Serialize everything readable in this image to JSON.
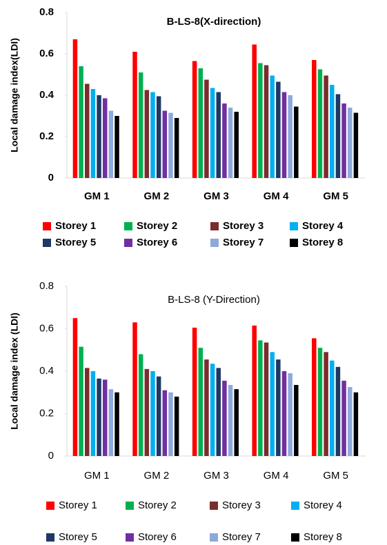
{
  "chart_data": [
    {
      "type": "bar",
      "title": "B-LS-8(X-direction)",
      "y_label": "Local damage index(LDI)",
      "categories": [
        "GM 1",
        "GM 2",
        "GM 3",
        "GM 4",
        "GM 5"
      ],
      "ylim": [
        0,
        0.8
      ],
      "yticks": [
        0,
        0.2,
        0.4,
        0.6,
        0.8
      ],
      "series": [
        {
          "name": "Storey 1",
          "color": "#ff0000",
          "values": [
            0.67,
            0.61,
            0.565,
            0.645,
            0.57
          ]
        },
        {
          "name": "Storey 2",
          "color": "#00b050",
          "values": [
            0.54,
            0.51,
            0.53,
            0.555,
            0.525
          ]
        },
        {
          "name": "Storey 3",
          "color": "#7b2c2c",
          "values": [
            0.455,
            0.425,
            0.475,
            0.545,
            0.495
          ]
        },
        {
          "name": "Storey 4",
          "color": "#00b0f0",
          "values": [
            0.43,
            0.415,
            0.435,
            0.495,
            0.45
          ]
        },
        {
          "name": "Storey 5",
          "color": "#1f3864",
          "values": [
            0.4,
            0.395,
            0.415,
            0.465,
            0.405
          ]
        },
        {
          "name": "Storey 6",
          "color": "#7030a0",
          "values": [
            0.385,
            0.325,
            0.36,
            0.415,
            0.36
          ]
        },
        {
          "name": "Storey 7",
          "color": "#8ea9db",
          "values": [
            0.325,
            0.315,
            0.34,
            0.4,
            0.34
          ]
        },
        {
          "name": "Storey 8",
          "color": "#000000",
          "values": [
            0.3,
            0.29,
            0.32,
            0.345,
            0.315
          ]
        }
      ]
    },
    {
      "type": "bar",
      "title": "B-LS-8 (Y-Direction)",
      "y_label": "Local damage index (LDI)",
      "categories": [
        "GM 1",
        "GM 2",
        "GM 3",
        "GM 4",
        "GM 5"
      ],
      "ylim": [
        0,
        0.8
      ],
      "yticks": [
        0,
        0.2,
        0.4,
        0.6,
        0.8
      ],
      "series": [
        {
          "name": "Storey 1",
          "color": "#ff0000",
          "values": [
            0.65,
            0.63,
            0.605,
            0.615,
            0.555
          ]
        },
        {
          "name": "Storey 2",
          "color": "#00b050",
          "values": [
            0.515,
            0.48,
            0.51,
            0.545,
            0.51
          ]
        },
        {
          "name": "Storey 3",
          "color": "#7b2c2c",
          "values": [
            0.415,
            0.41,
            0.455,
            0.535,
            0.49
          ]
        },
        {
          "name": "Storey 4",
          "color": "#00b0f0",
          "values": [
            0.4,
            0.4,
            0.435,
            0.49,
            0.45
          ]
        },
        {
          "name": "Storey 5",
          "color": "#1f3864",
          "values": [
            0.365,
            0.375,
            0.415,
            0.455,
            0.42
          ]
        },
        {
          "name": "Storey 6",
          "color": "#7030a0",
          "values": [
            0.36,
            0.31,
            0.355,
            0.4,
            0.355
          ]
        },
        {
          "name": "Storey 7",
          "color": "#8ea9db",
          "values": [
            0.315,
            0.3,
            0.335,
            0.39,
            0.325
          ]
        },
        {
          "name": "Storey 8",
          "color": "#000000",
          "values": [
            0.3,
            0.28,
            0.315,
            0.335,
            0.3
          ]
        }
      ]
    }
  ]
}
